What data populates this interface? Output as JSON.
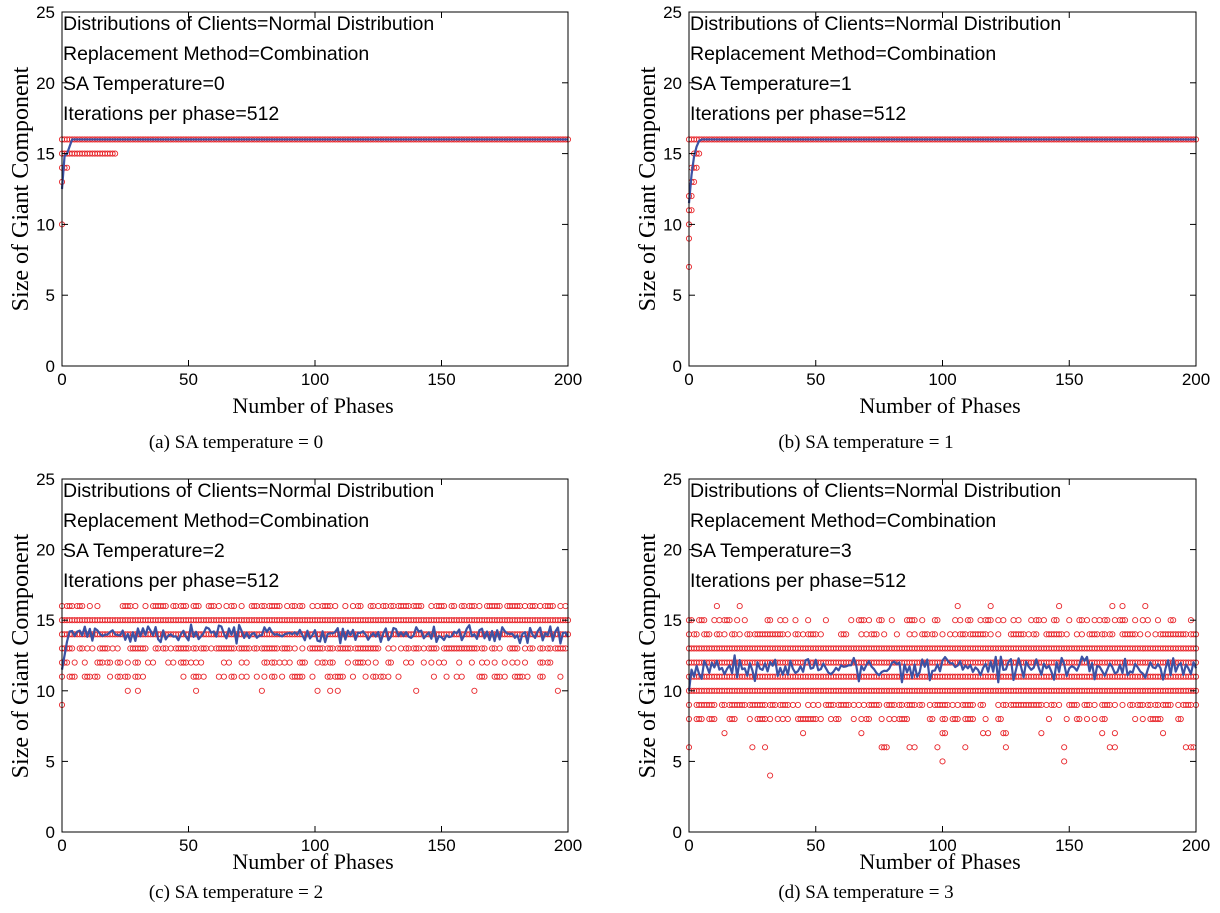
{
  "colors": {
    "points": "#e8262b",
    "mean_line": "#3c52a4",
    "axes": "#000000"
  },
  "chart_data": [
    {
      "type": "scatter",
      "panel": "a",
      "caption": "(a) SA temperature = 0",
      "xlabel": "Number of Phases",
      "ylabel": "Size of Giant Component",
      "xlim": [
        0,
        200
      ],
      "ylim": [
        0,
        25
      ],
      "xticks": [
        0,
        50,
        100,
        150,
        200
      ],
      "yticks": [
        0,
        5,
        10,
        15,
        20,
        25
      ],
      "grid": false,
      "annotation": [
        "Distributions of Clients=Normal Distribution",
        "Replacement Method=Combination",
        "SA Temperature=0",
        "Iterations per phase=512"
      ],
      "series": [
        {
          "style": "markers",
          "points": [
            [
              0,
              10
            ],
            [
              0,
              13
            ],
            [
              0,
              14
            ],
            [
              0,
              15
            ],
            [
              0,
              16
            ],
            [
              1,
              14
            ],
            [
              1,
              15
            ],
            [
              1,
              16
            ],
            [
              2,
              14
            ],
            [
              2,
              15
            ],
            [
              2,
              16
            ],
            [
              3,
              15
            ],
            [
              3,
              16
            ],
            [
              4,
              15
            ],
            [
              4,
              16
            ],
            [
              5,
              15
            ],
            [
              5,
              16
            ],
            [
              6,
              15
            ],
            [
              6,
              16
            ],
            [
              7,
              15
            ],
            [
              7,
              16
            ],
            [
              8,
              15
            ],
            [
              8,
              16
            ],
            [
              9,
              15
            ],
            [
              9,
              16
            ],
            [
              10,
              15
            ],
            [
              10,
              16
            ],
            [
              11,
              15
            ],
            [
              11,
              16
            ],
            [
              12,
              15
            ],
            [
              12,
              16
            ],
            [
              13,
              15
            ],
            [
              13,
              16
            ],
            [
              14,
              15
            ],
            [
              14,
              16
            ],
            [
              15,
              15
            ],
            [
              15,
              16
            ],
            [
              16,
              15
            ],
            [
              16,
              16
            ],
            [
              17,
              15
            ],
            [
              17,
              16
            ],
            [
              18,
              15
            ],
            [
              18,
              16
            ],
            [
              19,
              15
            ],
            [
              19,
              16
            ],
            [
              20,
              15
            ],
            [
              20,
              16
            ],
            [
              21,
              15
            ],
            [
              21,
              16
            ]
          ],
          "constant_from": 22,
          "constant_value": 16
        },
        {
          "style": "line",
          "points": [
            [
              0,
              12.5
            ],
            [
              1,
              14.8
            ],
            [
              2,
              15
            ],
            [
              3,
              15.5
            ],
            [
              4,
              16
            ],
            [
              5,
              16
            ],
            [
              200,
              16
            ]
          ]
        }
      ]
    },
    {
      "type": "scatter",
      "panel": "b",
      "caption": "(b) SA temperature = 1",
      "xlabel": "Number of Phases",
      "ylabel": "Size of Giant Component",
      "xlim": [
        0,
        200
      ],
      "ylim": [
        0,
        25
      ],
      "xticks": [
        0,
        50,
        100,
        150,
        200
      ],
      "yticks": [
        0,
        5,
        10,
        15,
        20,
        25
      ],
      "grid": false,
      "annotation": [
        "Distributions of Clients=Normal Distribution",
        "Replacement Method=Combination",
        "SA Temperature=1",
        "Iterations per phase=512"
      ],
      "series": [
        {
          "style": "markers",
          "points": [
            [
              0,
              7
            ],
            [
              0,
              9
            ],
            [
              0,
              10
            ],
            [
              0,
              11
            ],
            [
              0,
              12
            ],
            [
              0,
              16
            ],
            [
              1,
              11
            ],
            [
              1,
              12
            ],
            [
              1,
              13
            ],
            [
              1,
              14
            ],
            [
              1,
              16
            ],
            [
              2,
              13
            ],
            [
              2,
              14
            ],
            [
              2,
              15
            ],
            [
              2,
              16
            ],
            [
              3,
              14
            ],
            [
              3,
              15
            ],
            [
              3,
              16
            ],
            [
              4,
              15
            ],
            [
              4,
              16
            ]
          ],
          "constant_from": 5,
          "constant_value": 16
        },
        {
          "style": "line",
          "points": [
            [
              0,
              11.5
            ],
            [
              1,
              13.5
            ],
            [
              2,
              14.8
            ],
            [
              3,
              15.5
            ],
            [
              4,
              15.9
            ],
            [
              5,
              16
            ],
            [
              200,
              16
            ]
          ]
        }
      ]
    },
    {
      "type": "scatter",
      "panel": "c",
      "caption": "(c) SA temperature = 2",
      "xlabel": "Number of Phases",
      "ylabel": "Size of Giant Component",
      "xlim": [
        0,
        200
      ],
      "ylim": [
        0,
        25
      ],
      "xticks": [
        0,
        50,
        100,
        150,
        200
      ],
      "yticks": [
        0,
        5,
        10,
        15,
        20,
        25
      ],
      "grid": false,
      "annotation": [
        "Distributions of Clients=Normal Distribution",
        "Replacement Method=Combination",
        "SA Temperature=2",
        "Iterations per phase=512"
      ],
      "scatter_summary": {
        "min": 9,
        "max": 16,
        "rows_always_filled": [
          14,
          15
        ],
        "frequent_rows": [
          13,
          16
        ],
        "occasional_rows": [
          11,
          12
        ],
        "rare_rows": [
          10
        ],
        "outliers": [
          [
            0,
            9
          ]
        ]
      },
      "series": [
        {
          "style": "line",
          "mean": 14.0,
          "spread": 0.55,
          "start": [
            [
              0,
              11.5
            ],
            [
              1,
              12.5
            ],
            [
              2,
              13.5
            ],
            [
              3,
              14.2
            ]
          ]
        }
      ]
    },
    {
      "type": "scatter",
      "panel": "d",
      "caption": "(d) SA temperature = 3",
      "xlabel": "Number of Phases",
      "ylabel": "Size of Giant Component",
      "xlim": [
        0,
        200
      ],
      "ylim": [
        0,
        25
      ],
      "xticks": [
        0,
        50,
        100,
        150,
        200
      ],
      "yticks": [
        0,
        5,
        10,
        15,
        20,
        25
      ],
      "grid": false,
      "annotation": [
        "Distributions of Clients=Normal Distribution",
        "Replacement Method=Combination",
        "SA Temperature=3",
        "Iterations per phase=512"
      ],
      "scatter_summary": {
        "min": 4,
        "max": 16,
        "rows_always_filled": [
          10,
          11,
          12,
          13
        ],
        "frequent_rows": [
          9,
          14
        ],
        "occasional_rows": [
          8,
          15
        ],
        "rare_rows": [
          6,
          7,
          16
        ],
        "outliers": [
          [
            0,
            6
          ],
          [
            32,
            4
          ],
          [
            100,
            5
          ],
          [
            148,
            5
          ],
          [
            199,
            6
          ]
        ]
      },
      "series": [
        {
          "style": "line",
          "mean": 11.6,
          "spread": 0.75,
          "start": [
            [
              0,
              10
            ],
            [
              1,
              11.5
            ],
            [
              2,
              11
            ]
          ]
        }
      ]
    }
  ]
}
